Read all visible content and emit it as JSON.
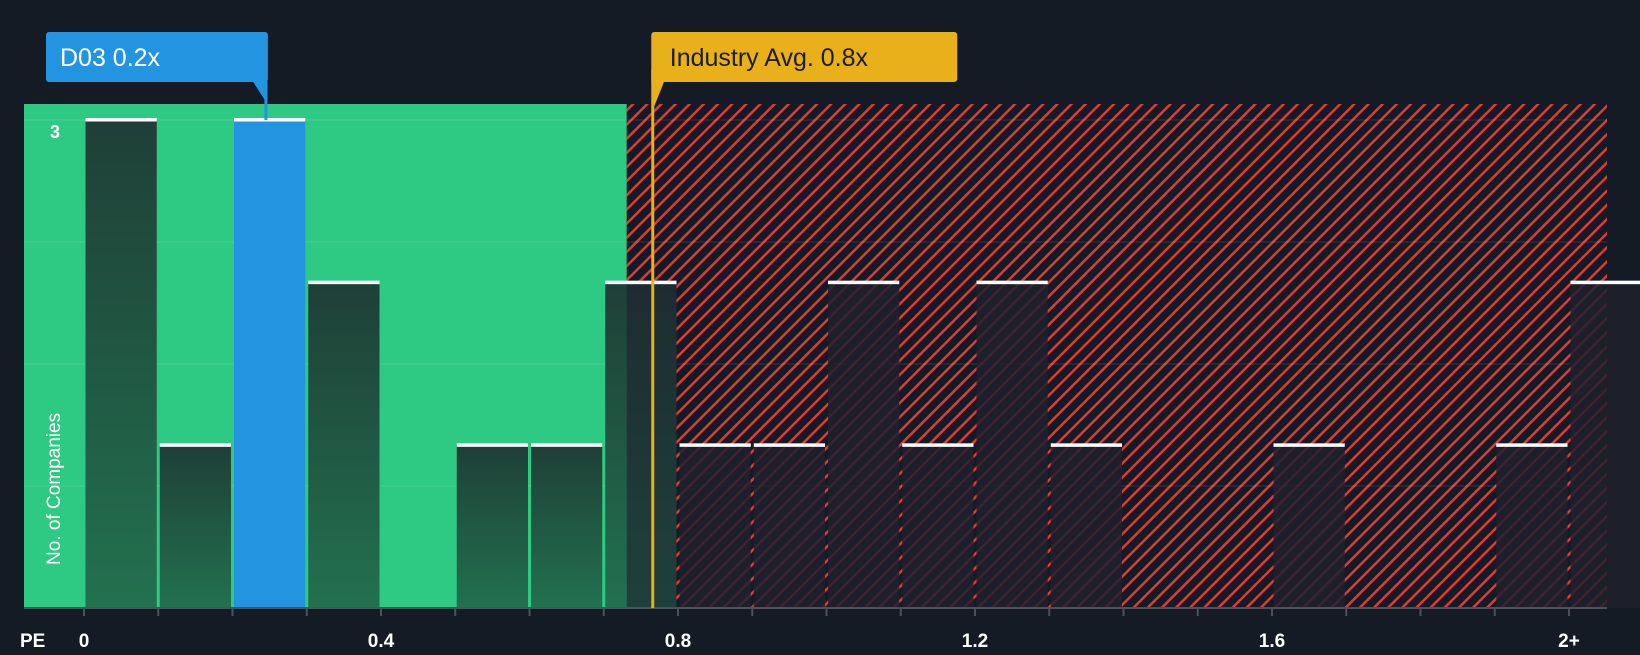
{
  "chart_data": {
    "type": "bar",
    "title": "",
    "xlabel": "PE",
    "ylabel": "No. of Companies",
    "bin_width": 0.1,
    "bins_start": [
      0,
      0.1,
      0.2,
      0.3,
      0.4,
      0.5,
      0.6,
      0.7,
      0.8,
      0.9,
      1.0,
      1.1,
      1.2,
      1.3,
      1.4,
      1.5,
      1.6,
      1.7,
      1.8,
      1.9,
      2.0
    ],
    "values": [
      3,
      1,
      3,
      2,
      0,
      1,
      1,
      2,
      1,
      1,
      2,
      1,
      2,
      1,
      0,
      0,
      1,
      0,
      0,
      1,
      2
    ],
    "highlight_bin": 2,
    "x_ticks": [
      {
        "v": 0,
        "label": "0"
      },
      {
        "v": 0.4,
        "label": "0.4"
      },
      {
        "v": 0.8,
        "label": "0.8"
      },
      {
        "v": 1.2,
        "label": "1.2"
      },
      {
        "v": 1.6,
        "label": "1.6"
      },
      {
        "v": 2.0,
        "label": "2+"
      }
    ],
    "y_ticks": [
      {
        "v": 3,
        "label": "3"
      }
    ],
    "ylim": [
      0,
      3.1
    ],
    "xlim": [
      -0.08,
      2.1
    ],
    "fair_value_boundary": 0.731,
    "company": {
      "label": "D03 0.2x",
      "value": 0.2
    },
    "industry": {
      "label": "Industry Avg. 0.8x",
      "value": 0.766
    },
    "colors": {
      "background": "#151b24",
      "green": "#2ec982",
      "bar_dark": "#1f4a3b",
      "blue": "#2394e0",
      "red": "#e0393c",
      "yellow": "#e8b01b"
    }
  }
}
